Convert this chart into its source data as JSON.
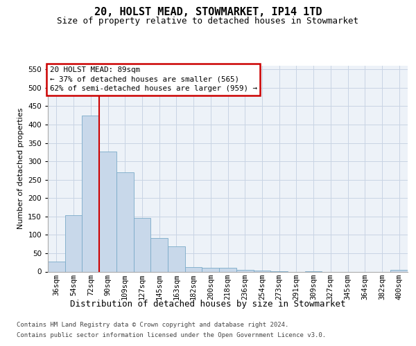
{
  "title": "20, HOLST MEAD, STOWMARKET, IP14 1TD",
  "subtitle": "Size of property relative to detached houses in Stowmarket",
  "xlabel": "Distribution of detached houses by size in Stowmarket",
  "ylabel": "Number of detached properties",
  "bar_color": "#c8d8ea",
  "bar_edge_color": "#7aaac8",
  "vline_color": "#cc0000",
  "vline_x": 2.5,
  "categories": [
    "36sqm",
    "54sqm",
    "72sqm",
    "90sqm",
    "109sqm",
    "127sqm",
    "145sqm",
    "163sqm",
    "182sqm",
    "200sqm",
    "218sqm",
    "236sqm",
    "254sqm",
    "273sqm",
    "291sqm",
    "309sqm",
    "327sqm",
    "345sqm",
    "364sqm",
    "382sqm",
    "400sqm"
  ],
  "values": [
    27,
    153,
    425,
    327,
    270,
    145,
    91,
    68,
    13,
    10,
    10,
    5,
    2,
    1,
    0,
    1,
    0,
    0,
    0,
    0,
    4
  ],
  "ylim": [
    0,
    560
  ],
  "yticks": [
    0,
    50,
    100,
    150,
    200,
    250,
    300,
    350,
    400,
    450,
    500,
    550
  ],
  "annotation_title": "20 HOLST MEAD: 89sqm",
  "annotation_line1": "← 37% of detached houses are smaller (565)",
  "annotation_line2": "62% of semi-detached houses are larger (959) →",
  "footer1": "Contains HM Land Registry data © Crown copyright and database right 2024.",
  "footer2": "Contains public sector information licensed under the Open Government Licence v3.0.",
  "grid_color": "#c8d4e4",
  "background_color": "#edf2f8",
  "title_fontsize": 11,
  "subtitle_fontsize": 9,
  "ylabel_fontsize": 8,
  "xlabel_fontsize": 9,
  "tick_fontsize": 7.5,
  "annotation_fontsize": 7.8,
  "footer_fontsize": 6.5
}
